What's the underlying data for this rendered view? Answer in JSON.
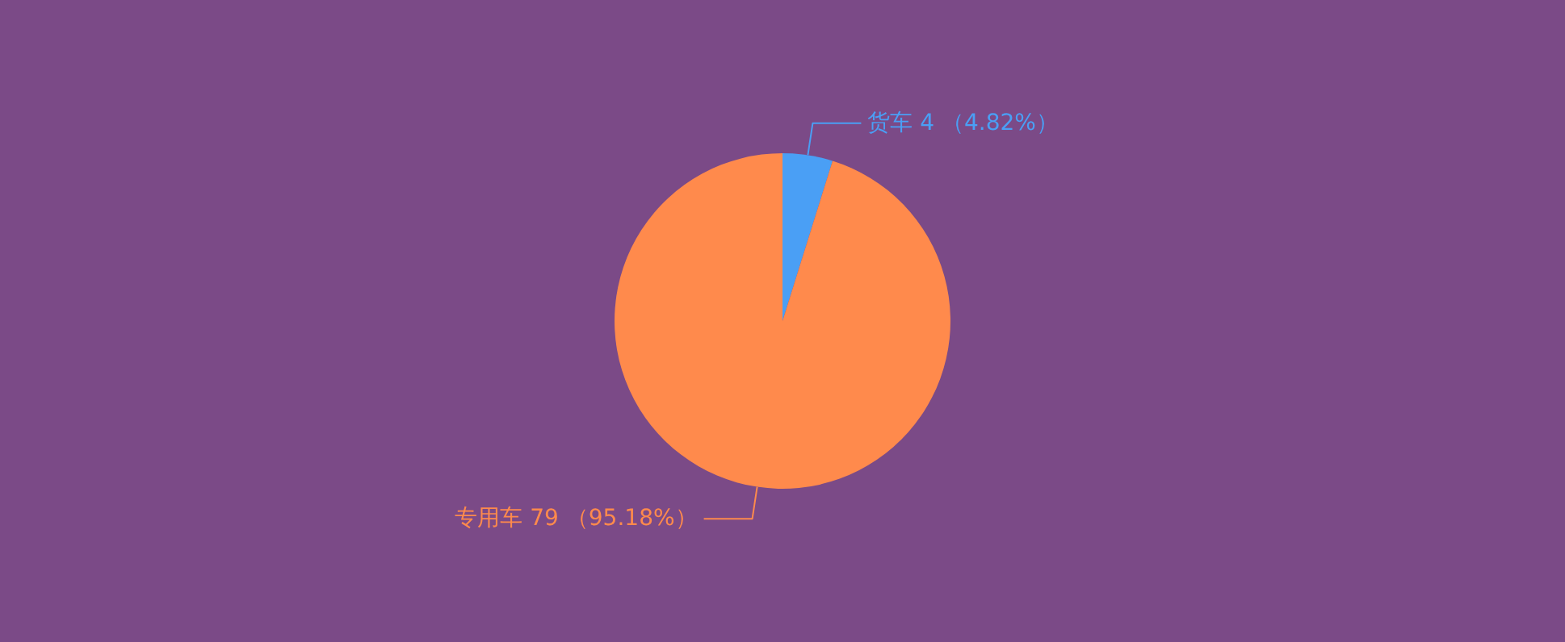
{
  "chart_data": {
    "type": "pie",
    "categories": [
      "货车",
      "专用车"
    ],
    "values": [
      4,
      79
    ],
    "colors": [
      "#4a9ff5",
      "#ff8a4c"
    ],
    "value_labels": [
      "4 （4.82%）",
      "79 （95.18%）"
    ]
  }
}
